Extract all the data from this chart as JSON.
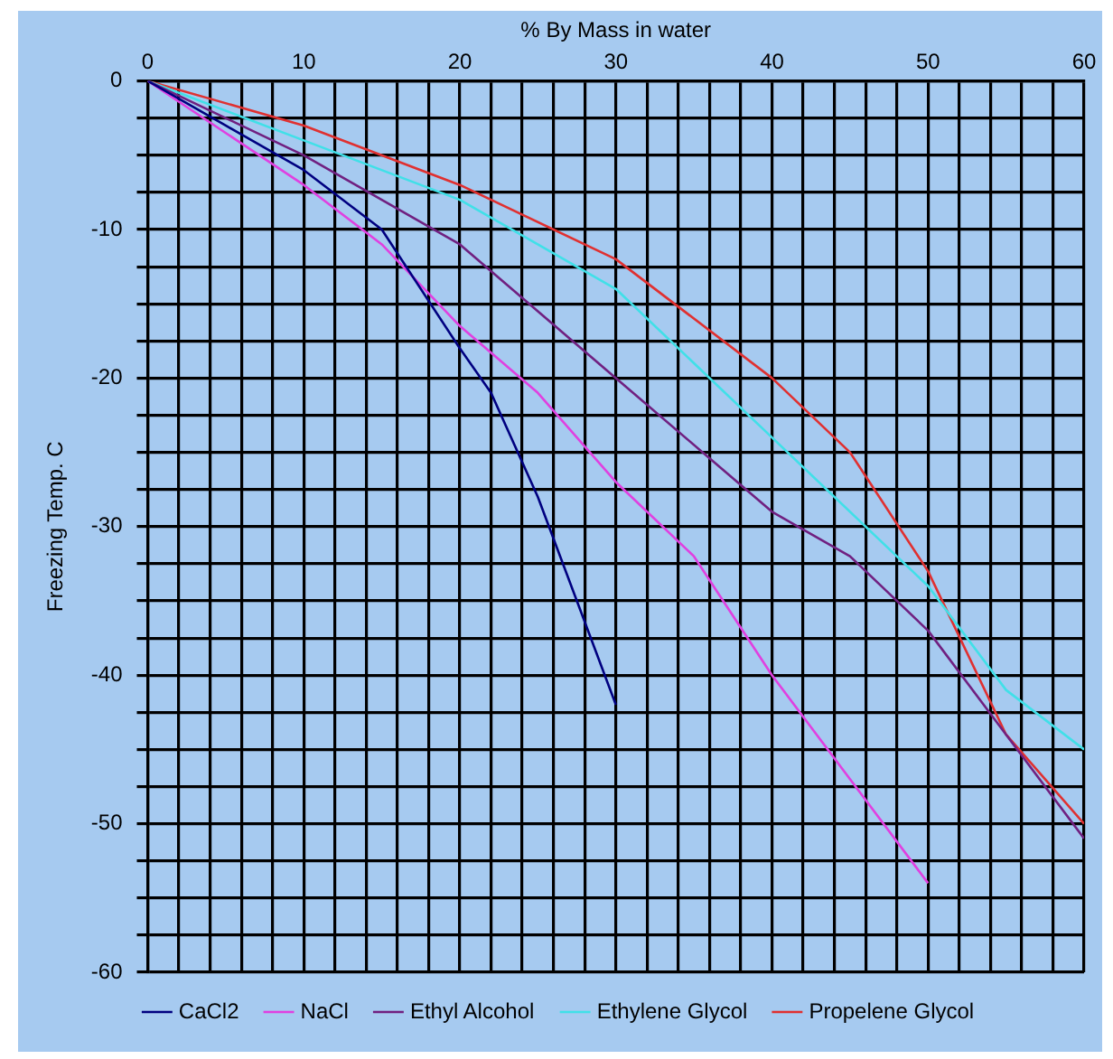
{
  "chart_data": {
    "type": "line",
    "xlabel": "% By Mass in water",
    "ylabel": "Freezing Temp. C",
    "xlim": [
      0,
      60
    ],
    "ylim": [
      -60,
      0
    ],
    "xticks": [
      0,
      {
        "value": 2,
        "label": null
      },
      {
        "value": 4,
        "label": null
      },
      {
        "value": 6,
        "label": null
      },
      {
        "value": 8,
        "label": null
      },
      10,
      {
        "value": 12,
        "label": null
      },
      {
        "value": 14,
        "label": null
      },
      {
        "value": 16,
        "label": null
      },
      {
        "value": 18,
        "label": null
      },
      20,
      {
        "value": 22,
        "label": null
      },
      {
        "value": 24,
        "label": null
      },
      {
        "value": 26,
        "label": null
      },
      {
        "value": 28,
        "label": null
      },
      30,
      {
        "value": 32,
        "label": null
      },
      {
        "value": 34,
        "label": null
      },
      {
        "value": 36,
        "label": null
      },
      {
        "value": 38,
        "label": null
      },
      40,
      {
        "value": 42,
        "label": null
      },
      {
        "value": 44,
        "label": null
      },
      {
        "value": 46,
        "label": null
      },
      {
        "value": 48,
        "label": null
      },
      50,
      {
        "value": 52,
        "label": null
      },
      {
        "value": 54,
        "label": null
      },
      {
        "value": 56,
        "label": null
      },
      {
        "value": 58,
        "label": null
      },
      60
    ],
    "yticks": [
      0,
      {
        "value": -2.5,
        "label": null
      },
      {
        "value": -5,
        "label": null
      },
      {
        "value": -7.5,
        "label": null
      },
      -10,
      {
        "value": -12.5,
        "label": null
      },
      {
        "value": -15,
        "label": null
      },
      {
        "value": -17.5,
        "label": null
      },
      -20,
      {
        "value": -22.5,
        "label": null
      },
      {
        "value": -25,
        "label": null
      },
      {
        "value": -27.5,
        "label": null
      },
      -30,
      {
        "value": -32.5,
        "label": null
      },
      {
        "value": -35,
        "label": null
      },
      {
        "value": -37.5,
        "label": null
      },
      -40,
      {
        "value": -42.5,
        "label": null
      },
      {
        "value": -45,
        "label": null
      },
      {
        "value": -47.5,
        "label": null
      },
      -50,
      {
        "value": -52.5,
        "label": null
      },
      {
        "value": -55,
        "label": null
      },
      {
        "value": -57.5,
        "label": null
      },
      -60
    ],
    "grid": true,
    "legend": "bottom",
    "marker": "none",
    "line_style": "solid",
    "series": [
      {
        "name": "CaCl2",
        "color": "#000080",
        "x": [
          0,
          5,
          10,
          15,
          20,
          22,
          25,
          30
        ],
        "values": [
          0,
          -3,
          -6,
          -10,
          -18,
          -21,
          -28,
          -42
        ]
      },
      {
        "name": "NaCl",
        "color": "#e040e0",
        "x": [
          0,
          10,
          15,
          20,
          25,
          30,
          35,
          40,
          45,
          50
        ],
        "values": [
          0,
          -7,
          -11,
          -16.5,
          -21,
          -27,
          -32,
          -40,
          -47,
          -54
        ]
      },
      {
        "name": "Ethyl Alcohol",
        "color": "#702080",
        "x": [
          0,
          10,
          20,
          30,
          40,
          45,
          50,
          55,
          60
        ],
        "values": [
          0,
          -5,
          -11,
          -20,
          -29,
          -32,
          -37,
          -44,
          -51
        ]
      },
      {
        "name": "Ethylene Glycol",
        "color": "#40e0e8",
        "x": [
          0,
          10,
          20,
          30,
          40,
          50,
          55,
          60
        ],
        "values": [
          0,
          -4,
          -8,
          -14,
          -24,
          -34,
          -41,
          -45
        ]
      },
      {
        "name": "Propelene Glycol",
        "color": "#e03030",
        "x": [
          0,
          10,
          20,
          30,
          40,
          45,
          50,
          55,
          60
        ],
        "values": [
          0,
          -3,
          -7,
          -12,
          -20,
          -25,
          -33,
          -44,
          -50
        ]
      }
    ]
  }
}
